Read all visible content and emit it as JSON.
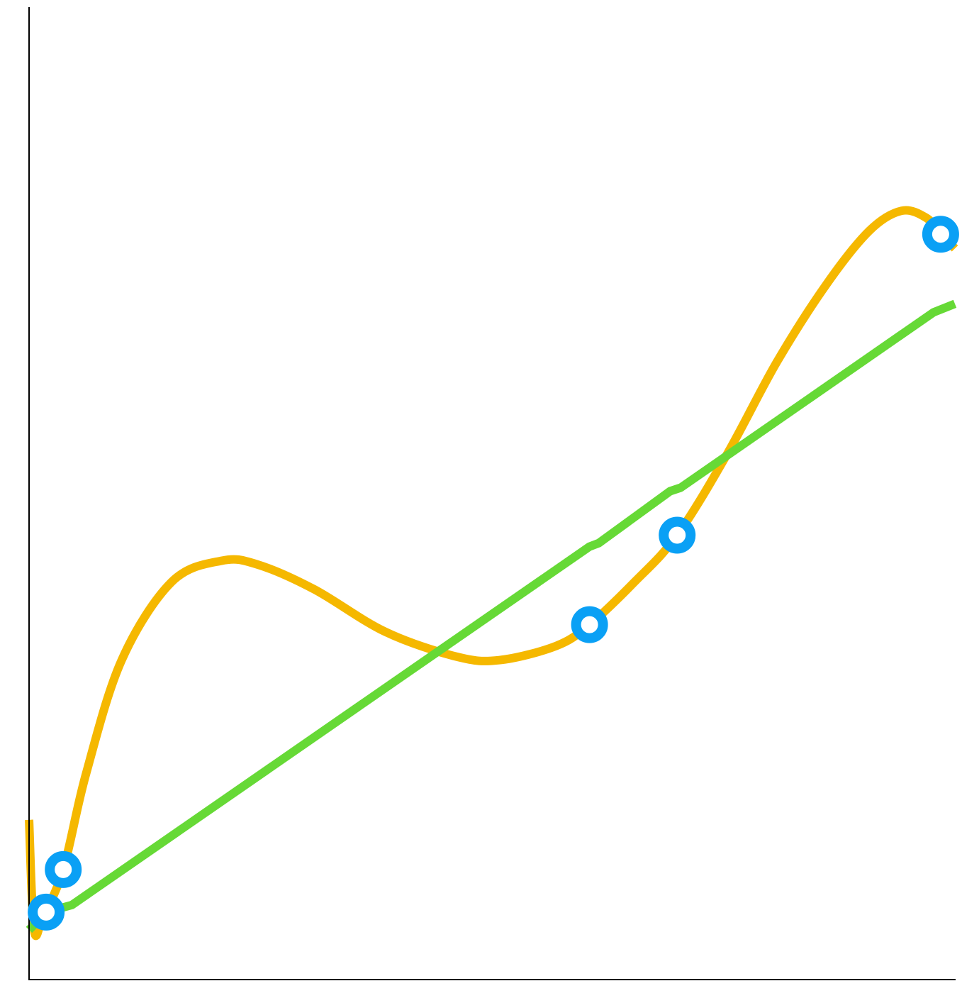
{
  "chart_data": {
    "type": "line",
    "title": "",
    "xlabel": "",
    "ylabel": "",
    "grid": false,
    "legend": "none",
    "xlim": [
      0,
      1.3
    ],
    "ylim": [
      0,
      1.38
    ],
    "points": [
      {
        "x": 0.024,
        "y": 0.095
      },
      {
        "x": 0.048,
        "y": 0.155
      },
      {
        "x": 0.787,
        "y": 0.5
      },
      {
        "x": 0.91,
        "y": 0.626
      },
      {
        "x": 1.28,
        "y": 1.05
      }
    ],
    "series": [
      {
        "color": "#F5B800",
        "style": "smooth-curve",
        "x": [
          0.0,
          0.007,
          0.02,
          0.048,
          0.08,
          0.13,
          0.2,
          0.27,
          0.32,
          0.4,
          0.5,
          0.6,
          0.66,
          0.74,
          0.787,
          0.85,
          0.91,
          0.98,
          1.05,
          1.12,
          1.18,
          1.225,
          1.26,
          1.28,
          1.3
        ],
        "y": [
          0.225,
          0.07,
          0.09,
          0.155,
          0.29,
          0.45,
          0.56,
          0.59,
          0.585,
          0.55,
          0.49,
          0.455,
          0.45,
          0.47,
          0.5,
          0.56,
          0.626,
          0.74,
          0.87,
          0.98,
          1.055,
          1.083,
          1.073,
          1.05,
          1.03
        ]
      },
      {
        "color": "#66D936",
        "style": "polyline",
        "x": [
          0.0,
          0.024,
          0.06,
          0.787,
          0.8,
          0.9,
          0.915,
          1.27,
          1.3
        ],
        "y": [
          0.07,
          0.095,
          0.105,
          0.61,
          0.615,
          0.688,
          0.693,
          0.94,
          0.952
        ]
      }
    ]
  },
  "colors": {
    "axis": "#000000",
    "marker_ring": "#0AA0F5",
    "marker_fill": "#FFFFFF",
    "background": "#FFFFFF"
  }
}
